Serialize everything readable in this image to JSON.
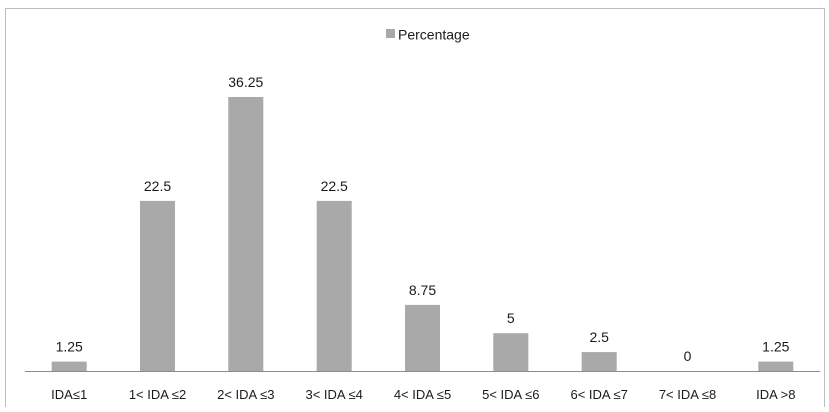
{
  "colors": {
    "bar": "#a9a9a9",
    "axis": "#8c8c8c",
    "border": "#bdbdbd",
    "text": "#1a1a1a"
  },
  "chart_data": {
    "type": "bar",
    "title": "",
    "xlabel": "",
    "ylabel": "",
    "legend_position": "top-center",
    "grid": false,
    "ylim": [
      0,
      40
    ],
    "categories": [
      "IDA≤1",
      "1< IDA ≤2",
      "2< IDA ≤3",
      "3< IDA ≤4",
      "4< IDA ≤5",
      "5< IDA ≤6",
      "6< IDA ≤7",
      "7< IDA ≤8",
      "IDA >8"
    ],
    "series": [
      {
        "name": "Percentage",
        "values": [
          1.25,
          22.5,
          36.25,
          22.5,
          8.75,
          5,
          2.5,
          0,
          1.25
        ],
        "labels": [
          "1.25",
          "22.5",
          "36.25",
          "22.5",
          "8.75",
          "5",
          "2.5",
          "0",
          "1.25"
        ]
      }
    ]
  }
}
